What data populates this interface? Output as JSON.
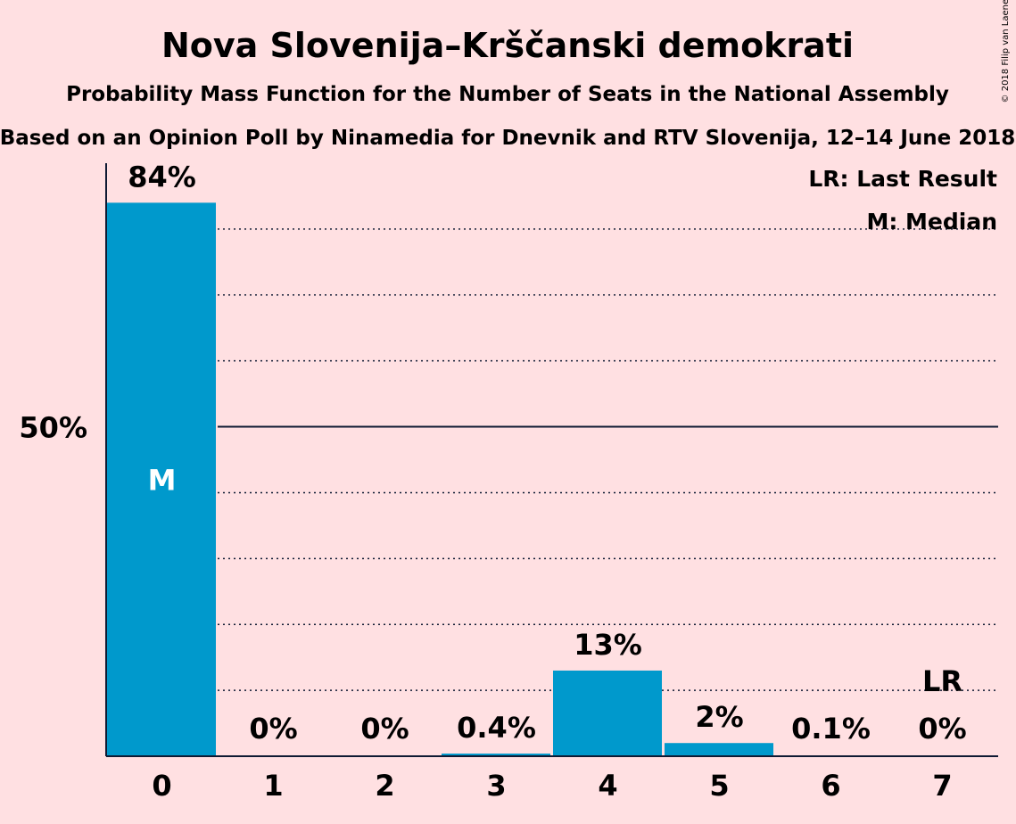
{
  "title": "Nova Slovenija–Krščanski demokrati",
  "subtitle1": "Probability Mass Function for the Number of Seats in the National Assembly",
  "subtitle2": "Based on an Opinion Poll by Ninamedia for Dnevnik and RTV Slovenija, 12–14 June 2018",
  "copyright": "© 2018 Filip van Laenen",
  "legend": {
    "last_result": "LR: Last Result",
    "median": "M: Median"
  },
  "colors": {
    "bar": "#0099cc",
    "background": "#ffe0e2",
    "text": "#0f1a33"
  },
  "chart_data": {
    "type": "bar",
    "categories": [
      "0",
      "1",
      "2",
      "3",
      "4",
      "5",
      "6",
      "7"
    ],
    "values": [
      84,
      0,
      0,
      0.4,
      13,
      2,
      0.1,
      0
    ],
    "value_labels": [
      "84%",
      "0%",
      "0%",
      "0.4%",
      "13%",
      "2%",
      "0.1%",
      "0%"
    ],
    "ylim": [
      0,
      90
    ],
    "yticks": [
      {
        "value": 50,
        "label": "50%"
      }
    ],
    "gridlines_dotted": [
      10,
      20,
      30,
      40,
      60,
      70,
      80
    ],
    "gridlines_solid": [
      50
    ],
    "median_category": "0",
    "median_marker": "M",
    "last_result_category": "7",
    "last_result_marker": "LR"
  }
}
